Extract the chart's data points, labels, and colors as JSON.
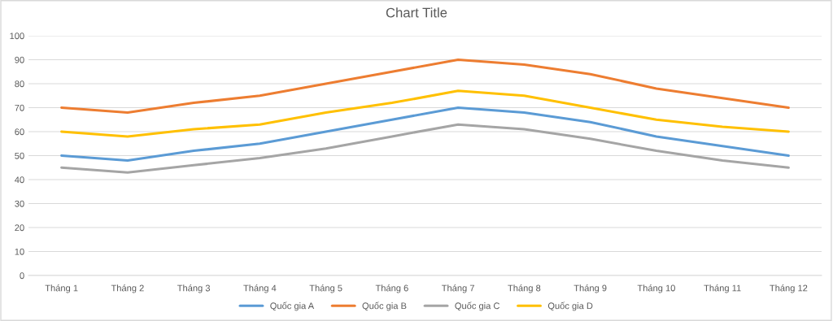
{
  "chart_data": {
    "type": "line",
    "title": "Chart Title",
    "categories": [
      "Tháng 1",
      "Tháng 2",
      "Tháng 3",
      "Tháng 4",
      "Tháng 5",
      "Tháng 6",
      "Tháng 7",
      "Tháng 8",
      "Tháng 9",
      "Tháng 10",
      "Tháng 11",
      "Tháng 12"
    ],
    "series": [
      {
        "name": "Quốc gia A",
        "color": "#5b9bd5",
        "values": [
          50,
          48,
          52,
          55,
          60,
          65,
          70,
          68,
          64,
          58,
          54,
          50
        ]
      },
      {
        "name": "Quốc gia B",
        "color": "#ed7d31",
        "values": [
          70,
          68,
          72,
          75,
          80,
          85,
          90,
          88,
          84,
          78,
          74,
          70
        ]
      },
      {
        "name": "Quốc gia C",
        "color": "#a5a5a5",
        "values": [
          45,
          43,
          46,
          49,
          53,
          58,
          63,
          61,
          57,
          52,
          48,
          45
        ]
      },
      {
        "name": "Quốc gia D",
        "color": "#ffc000",
        "values": [
          60,
          58,
          61,
          63,
          68,
          72,
          77,
          75,
          70,
          65,
          62,
          60
        ]
      }
    ],
    "ylim": [
      0,
      100
    ],
    "yticks": [
      0,
      10,
      20,
      30,
      40,
      50,
      60,
      70,
      80,
      90,
      100
    ],
    "grid": "y",
    "legend": "bottom",
    "marker": "none",
    "line_style": "solid"
  }
}
